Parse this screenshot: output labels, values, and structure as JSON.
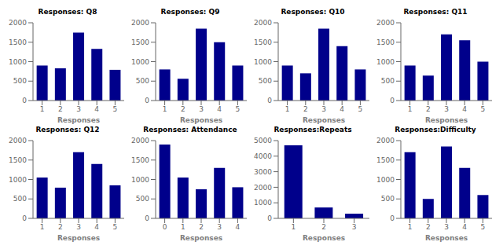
{
  "chart_data": [
    {
      "type": "bar",
      "title": "Responses: Q8",
      "xlabel": "Responses",
      "categories": [
        "1",
        "2",
        "3",
        "4",
        "5"
      ],
      "values": [
        900,
        830,
        1750,
        1330,
        790
      ],
      "color": "#00008B",
      "ylim": [
        0,
        2000
      ],
      "yticks": [
        0,
        500,
        1000,
        1500,
        2000
      ],
      "grid": false
    },
    {
      "type": "bar",
      "title": "Responses: Q9",
      "xlabel": "Responses",
      "categories": [
        "1",
        "2",
        "3",
        "4",
        "5"
      ],
      "values": [
        800,
        560,
        1850,
        1500,
        900
      ],
      "color": "#00008B",
      "ylim": [
        0,
        2000
      ],
      "yticks": [
        0,
        500,
        1000,
        1500,
        2000
      ],
      "grid": false
    },
    {
      "type": "bar",
      "title": "Responses: Q10",
      "xlabel": "Responses",
      "categories": [
        "1",
        "2",
        "3",
        "4",
        "5"
      ],
      "values": [
        900,
        700,
        1850,
        1400,
        800
      ],
      "color": "#00008B",
      "ylim": [
        0,
        2000
      ],
      "yticks": [
        0,
        500,
        1000,
        1500,
        2000
      ],
      "grid": false
    },
    {
      "type": "bar",
      "title": "Responses: Q11",
      "xlabel": "Responses",
      "categories": [
        "1",
        "2",
        "3",
        "4",
        "5"
      ],
      "values": [
        900,
        640,
        1700,
        1550,
        1000
      ],
      "color": "#00008B",
      "ylim": [
        0,
        2000
      ],
      "yticks": [
        0,
        500,
        1000,
        1500,
        2000
      ],
      "grid": false
    },
    {
      "type": "bar",
      "title": "Responses: Q12",
      "xlabel": "Responses",
      "categories": [
        "1",
        "2",
        "3",
        "4",
        "5"
      ],
      "values": [
        1050,
        790,
        1700,
        1400,
        850
      ],
      "color": "#00008B",
      "ylim": [
        0,
        2000
      ],
      "yticks": [
        0,
        500,
        1000,
        1500,
        2000
      ],
      "grid": false
    },
    {
      "type": "bar",
      "title": "Responses: Attendance",
      "xlabel": "Responses",
      "categories": [
        "0",
        "1",
        "2",
        "3",
        "4"
      ],
      "values": [
        1900,
        1050,
        750,
        1300,
        800
      ],
      "color": "#00008B",
      "ylim": [
        0,
        2000
      ],
      "yticks": [
        0,
        500,
        1000,
        1500,
        2000
      ],
      "grid": false
    },
    {
      "type": "bar",
      "title": "Responses:Repeats",
      "xlabel": "Responses",
      "categories": [
        "1",
        "2",
        "3"
      ],
      "values": [
        4700,
        700,
        300
      ],
      "color": "#00008B",
      "ylim": [
        0,
        5000
      ],
      "yticks": [
        0,
        1000,
        2000,
        3000,
        4000,
        5000
      ],
      "grid": false
    },
    {
      "type": "bar",
      "title": "Responses:Difficulty",
      "xlabel": "Responses",
      "categories": [
        "1",
        "2",
        "3",
        "4",
        "5"
      ],
      "values": [
        1700,
        500,
        1850,
        1300,
        600
      ],
      "color": "#00008B",
      "ylim": [
        0,
        2000
      ],
      "yticks": [
        0,
        500,
        1000,
        1500,
        2000
      ],
      "grid": false
    }
  ]
}
